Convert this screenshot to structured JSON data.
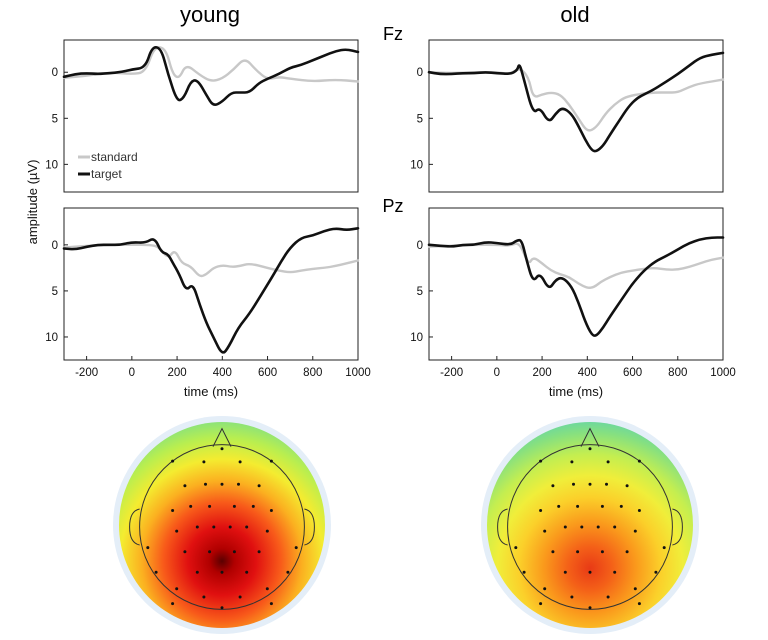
{
  "columns": [
    "young",
    "old"
  ],
  "channels": [
    "Fz",
    "Pz"
  ],
  "ylabel": "amplitude (µV)",
  "xlabel": "time (ms)",
  "legend": [
    "standard",
    "target"
  ],
  "colors": {
    "standard": "#c8c8c8",
    "target": "#111111"
  },
  "chart_data": [
    {
      "type": "line",
      "group": "young",
      "channel": "Fz",
      "xlim": [
        -300,
        1000
      ],
      "ylim": [
        -3.5,
        13
      ],
      "y_inverted": true,
      "yticks": [
        0,
        5,
        10
      ],
      "xticks": [],
      "series": [
        {
          "name": "standard",
          "points": [
            [
              -300,
              0.6
            ],
            [
              -200,
              0.4
            ],
            [
              -100,
              0
            ],
            [
              0,
              0.2
            ],
            [
              60,
              0
            ],
            [
              100,
              -2.8
            ],
            [
              150,
              -2.6
            ],
            [
              180,
              0.2
            ],
            [
              210,
              0.7
            ],
            [
              240,
              -0.9
            ],
            [
              300,
              0.3
            ],
            [
              350,
              1
            ],
            [
              400,
              0.7
            ],
            [
              450,
              -0.3
            ],
            [
              500,
              -1.6
            ],
            [
              550,
              -0.2
            ],
            [
              600,
              0.8
            ],
            [
              650,
              0.5
            ],
            [
              700,
              0.7
            ],
            [
              800,
              1
            ],
            [
              900,
              0.8
            ],
            [
              1000,
              1
            ]
          ]
        },
        {
          "name": "target",
          "points": [
            [
              -300,
              0.5
            ],
            [
              -250,
              0.2
            ],
            [
              -200,
              0.1
            ],
            [
              -150,
              0.2
            ],
            [
              -100,
              0.1
            ],
            [
              -50,
              0
            ],
            [
              0,
              -0.3
            ],
            [
              60,
              -0.5
            ],
            [
              90,
              -2.8
            ],
            [
              130,
              -2.6
            ],
            [
              160,
              0.2
            ],
            [
              200,
              3.2
            ],
            [
              230,
              2.8
            ],
            [
              260,
              1
            ],
            [
              290,
              0.8
            ],
            [
              330,
              2.5
            ],
            [
              360,
              3.7
            ],
            [
              400,
              3.2
            ],
            [
              440,
              2.2
            ],
            [
              480,
              2.2
            ],
            [
              520,
              2.2
            ],
            [
              560,
              1.2
            ],
            [
              600,
              0.7
            ],
            [
              650,
              0.2
            ],
            [
              700,
              -0.5
            ],
            [
              750,
              -0.8
            ],
            [
              800,
              -1.3
            ],
            [
              850,
              -1.8
            ],
            [
              900,
              -2.3
            ],
            [
              950,
              -2.5
            ],
            [
              1000,
              -2.2
            ]
          ]
        }
      ]
    },
    {
      "type": "line",
      "group": "old",
      "channel": "Fz",
      "xlim": [
        -300,
        1000
      ],
      "ylim": [
        -3.5,
        13
      ],
      "y_inverted": true,
      "yticks": [
        0,
        5,
        10
      ],
      "xticks": [],
      "series": [
        {
          "name": "standard",
          "points": [
            [
              -300,
              0
            ],
            [
              -200,
              0.1
            ],
            [
              -100,
              0
            ],
            [
              0,
              0
            ],
            [
              60,
              0.2
            ],
            [
              100,
              -0.5
            ],
            [
              140,
              0.5
            ],
            [
              160,
              2.8
            ],
            [
              200,
              2.4
            ],
            [
              240,
              2.2
            ],
            [
              280,
              2.4
            ],
            [
              320,
              3.5
            ],
            [
              360,
              5
            ],
            [
              400,
              6.5
            ],
            [
              440,
              6
            ],
            [
              480,
              4.5
            ],
            [
              520,
              3.5
            ],
            [
              560,
              2.8
            ],
            [
              600,
              2.5
            ],
            [
              650,
              2.3
            ],
            [
              700,
              2.2
            ],
            [
              750,
              2.2
            ],
            [
              800,
              2.2
            ],
            [
              850,
              1.6
            ],
            [
              900,
              1.2
            ],
            [
              1000,
              0.8
            ]
          ]
        },
        {
          "name": "target",
          "points": [
            [
              -300,
              0
            ],
            [
              -250,
              0.2
            ],
            [
              -200,
              0.2
            ],
            [
              -150,
              0.1
            ],
            [
              -100,
              0.1
            ],
            [
              -50,
              0
            ],
            [
              0,
              0.1
            ],
            [
              60,
              0.2
            ],
            [
              90,
              -0.2
            ],
            [
              100,
              -1
            ],
            [
              120,
              0.8
            ],
            [
              160,
              4.5
            ],
            [
              190,
              3.8
            ],
            [
              230,
              5.5
            ],
            [
              260,
              4.5
            ],
            [
              290,
              3.8
            ],
            [
              330,
              4.5
            ],
            [
              360,
              5.8
            ],
            [
              390,
              7.3
            ],
            [
              420,
              8.5
            ],
            [
              440,
              8.6
            ],
            [
              470,
              8
            ],
            [
              500,
              6.8
            ],
            [
              540,
              5.3
            ],
            [
              580,
              3.8
            ],
            [
              620,
              2.8
            ],
            [
              660,
              2.3
            ],
            [
              700,
              1.8
            ],
            [
              750,
              1
            ],
            [
              800,
              0.2
            ],
            [
              850,
              -0.7
            ],
            [
              900,
              -1.6
            ],
            [
              950,
              -1.9
            ],
            [
              1000,
              -2.1
            ]
          ]
        }
      ]
    },
    {
      "type": "line",
      "group": "young",
      "channel": "Pz",
      "xlim": [
        -300,
        1000
      ],
      "ylim": [
        -4,
        12.5
      ],
      "y_inverted": true,
      "yticks": [
        0,
        5,
        10
      ],
      "xticks": [
        -200,
        0,
        200,
        400,
        600,
        800,
        1000
      ],
      "series": [
        {
          "name": "standard",
          "points": [
            [
              -300,
              0.3
            ],
            [
              -200,
              0.1
            ],
            [
              -100,
              0
            ],
            [
              0,
              0
            ],
            [
              80,
              0
            ],
            [
              120,
              0.2
            ],
            [
              160,
              1.5
            ],
            [
              190,
              0.5
            ],
            [
              220,
              2
            ],
            [
              260,
              2.3
            ],
            [
              300,
              3.5
            ],
            [
              330,
              3.2
            ],
            [
              360,
              2.5
            ],
            [
              400,
              2.2
            ],
            [
              440,
              2.4
            ],
            [
              480,
              2.3
            ],
            [
              520,
              2
            ],
            [
              600,
              2.5
            ],
            [
              650,
              2.8
            ],
            [
              700,
              3
            ],
            [
              750,
              2.8
            ],
            [
              800,
              2.6
            ],
            [
              850,
              2.5
            ],
            [
              900,
              2.3
            ],
            [
              950,
              2
            ],
            [
              1000,
              1.7
            ]
          ]
        },
        {
          "name": "target",
          "points": [
            [
              -300,
              0.4
            ],
            [
              -250,
              0.5
            ],
            [
              -200,
              0.2
            ],
            [
              -150,
              0
            ],
            [
              -100,
              0
            ],
            [
              -50,
              0
            ],
            [
              0,
              -0.3
            ],
            [
              60,
              -0.2
            ],
            [
              100,
              -0.8
            ],
            [
              130,
              0.8
            ],
            [
              160,
              1
            ],
            [
              180,
              1.9
            ],
            [
              210,
              3.2
            ],
            [
              240,
              5
            ],
            [
              270,
              4.2
            ],
            [
              300,
              6.5
            ],
            [
              330,
              8.5
            ],
            [
              360,
              10
            ],
            [
              400,
              12
            ],
            [
              430,
              11
            ],
            [
              470,
              9
            ],
            [
              520,
              7.5
            ],
            [
              570,
              5.5
            ],
            [
              620,
              3.5
            ],
            [
              660,
              1.8
            ],
            [
              700,
              0.3
            ],
            [
              750,
              -0.8
            ],
            [
              800,
              -1
            ],
            [
              850,
              -1.5
            ],
            [
              900,
              -1.8
            ],
            [
              950,
              -1.6
            ],
            [
              1000,
              -1.8
            ]
          ]
        }
      ]
    },
    {
      "type": "line",
      "group": "old",
      "channel": "Pz",
      "xlim": [
        -300,
        1000
      ],
      "ylim": [
        -4,
        12.5
      ],
      "y_inverted": true,
      "yticks": [
        0,
        5,
        10
      ],
      "xticks": [
        -200,
        0,
        200,
        400,
        600,
        800,
        1000
      ],
      "series": [
        {
          "name": "standard",
          "points": [
            [
              -300,
              0.2
            ],
            [
              -200,
              0.1
            ],
            [
              -100,
              0
            ],
            [
              0,
              0
            ],
            [
              60,
              0.1
            ],
            [
              100,
              -0.3
            ],
            [
              140,
              2.2
            ],
            [
              160,
              1.3
            ],
            [
              200,
              2
            ],
            [
              240,
              2.8
            ],
            [
              280,
              3.2
            ],
            [
              320,
              3.5
            ],
            [
              360,
              4.2
            ],
            [
              400,
              4.7
            ],
            [
              430,
              4.6
            ],
            [
              460,
              4
            ],
            [
              500,
              3.5
            ],
            [
              550,
              3
            ],
            [
              600,
              2.8
            ],
            [
              650,
              2.6
            ],
            [
              700,
              2.5
            ],
            [
              750,
              2.7
            ],
            [
              800,
              2.7
            ],
            [
              850,
              2.4
            ],
            [
              900,
              2
            ],
            [
              950,
              1.6
            ],
            [
              1000,
              1.4
            ]
          ]
        },
        {
          "name": "target",
          "points": [
            [
              -300,
              0
            ],
            [
              -250,
              0.1
            ],
            [
              -200,
              0.2
            ],
            [
              -150,
              0
            ],
            [
              -100,
              0
            ],
            [
              -50,
              -0.3
            ],
            [
              0,
              -0.2
            ],
            [
              60,
              0
            ],
            [
              90,
              -0.5
            ],
            [
              110,
              -0.5
            ],
            [
              130,
              1.5
            ],
            [
              160,
              4.1
            ],
            [
              190,
              3
            ],
            [
              230,
              4.9
            ],
            [
              260,
              3.8
            ],
            [
              290,
              3.5
            ],
            [
              330,
              4.5
            ],
            [
              360,
              6.2
            ],
            [
              390,
              8.3
            ],
            [
              420,
              9.8
            ],
            [
              440,
              9.9
            ],
            [
              470,
              9
            ],
            [
              500,
              7.8
            ],
            [
              550,
              6
            ],
            [
              600,
              4.2
            ],
            [
              650,
              2.8
            ],
            [
              700,
              1.8
            ],
            [
              750,
              1.2
            ],
            [
              800,
              0.5
            ],
            [
              850,
              -0.2
            ],
            [
              900,
              -0.6
            ],
            [
              950,
              -0.8
            ],
            [
              1000,
              -0.8
            ]
          ]
        }
      ]
    }
  ],
  "topomaps": [
    {
      "group": "young",
      "peak": [
        0,
        0.35
      ],
      "intensity": 1.0
    },
    {
      "group": "old",
      "peak": [
        0,
        0.42
      ],
      "intensity": 0.72
    }
  ]
}
